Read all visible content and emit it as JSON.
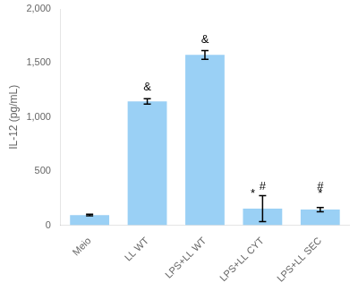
{
  "chart_data": {
    "type": "bar",
    "categories": [
      "Meio",
      "LL WT",
      "LPS+LL WT",
      "LPS+LL CYT",
      "LPS+LL SEC"
    ],
    "values": [
      95,
      1145,
      1575,
      155,
      145
    ],
    "errors": [
      8,
      25,
      40,
      120,
      20
    ],
    "ylabel": "IL-12 (pg/mL)",
    "ylim": [
      0,
      2000
    ],
    "yticks": [
      0,
      500,
      1000,
      1500,
      2000
    ],
    "grid": false,
    "annotations": [
      {
        "text": "&",
        "x": "LL WT",
        "y": 1220
      },
      {
        "text": "&",
        "x": "LPS+LL WT",
        "y": 1665
      },
      {
        "text": "#",
        "x": "LPS+LL CYT",
        "y": 300
      },
      {
        "text": "*",
        "x": "LPS+LL CYT",
        "y": 240
      },
      {
        "text": "#",
        "x": "LPS+LL SEC",
        "y": 300
      },
      {
        "text": "*",
        "x": "LPS+LL SEC",
        "y": 240
      }
    ]
  }
}
